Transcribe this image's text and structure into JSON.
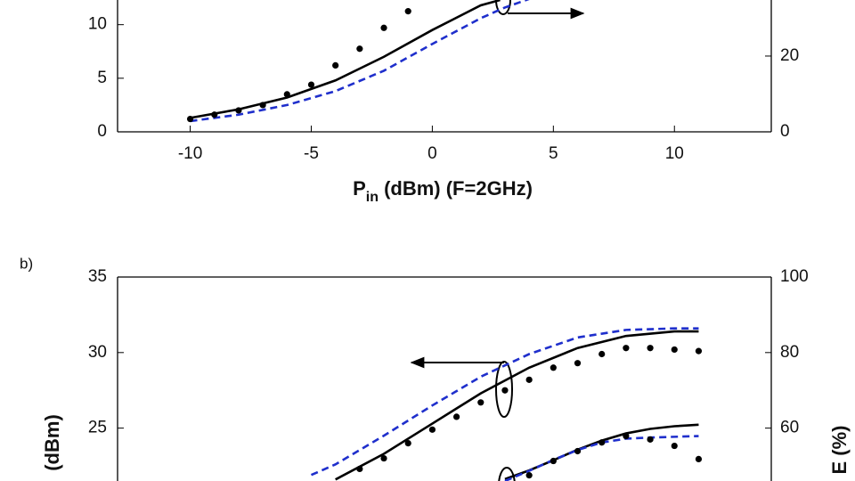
{
  "chart_data": [
    {
      "type": "line",
      "xlabel": [
        "P",
        "in",
        " (dBm) (F=2GHz)"
      ],
      "xlim": [
        -13,
        14
      ],
      "xticks": [
        -10,
        -5,
        0,
        5,
        10
      ],
      "ylim": [
        0,
        12.3
      ],
      "yticks": [
        0,
        5,
        10
      ],
      "y2lim": [
        0,
        34.8
      ],
      "y2ticks": [
        0,
        20
      ],
      "series": [
        {
          "color": "#000000",
          "style": "solid",
          "x": [
            -10,
            -8,
            -6,
            -4,
            -2,
            0,
            2,
            2.8
          ],
          "values": [
            1.3,
            2.1,
            3.2,
            4.8,
            7.0,
            9.5,
            11.8,
            12.3
          ]
        },
        {
          "color": "#1f2fcc",
          "style": "dashed",
          "x": [
            -10,
            -8,
            -6,
            -4,
            -2,
            0,
            2,
            3,
            4
          ],
          "values": [
            1.0,
            1.6,
            2.5,
            3.8,
            5.7,
            8.2,
            10.6,
            11.6,
            12.4
          ]
        },
        {
          "color": "#000000",
          "style": "markers",
          "x": [
            -10,
            -9,
            -8,
            -7,
            -6,
            -5,
            -4,
            -3,
            -2,
            -1
          ],
          "values": [
            1.2,
            1.6,
            2.0,
            2.5,
            3.5,
            4.4,
            6.2,
            7.75,
            9.7,
            11.25
          ]
        }
      ]
    },
    {
      "type": "line",
      "panel_label": "b)",
      "ylabel": "(dBm)",
      "y2label": "E (%)",
      "xlim": [
        -13,
        14
      ],
      "ylim": [
        21.5,
        35
      ],
      "yticks": [
        25,
        30,
        35
      ],
      "y2lim": [
        46,
        100
      ],
      "y2ticks": [
        60,
        80,
        100
      ],
      "series": [
        {
          "color": "#000000",
          "style": "solid",
          "x": [
            -4,
            -2,
            0,
            2,
            4,
            6,
            8,
            10,
            11
          ],
          "values": [
            21.6,
            23.3,
            25.3,
            27.3,
            29.0,
            30.3,
            31.1,
            31.4,
            31.4
          ]
        },
        {
          "color": "#1f2fcc",
          "style": "dashed",
          "x": [
            -5,
            -4,
            -2,
            0,
            2,
            4,
            6,
            8,
            10,
            11
          ],
          "values": [
            21.9,
            22.6,
            24.5,
            26.5,
            28.4,
            29.9,
            31.0,
            31.5,
            31.6,
            31.6
          ]
        },
        {
          "color": "#000000",
          "style": "markers",
          "x": [
            -3,
            -2,
            -1,
            0,
            1,
            2,
            3,
            4,
            5,
            6,
            7,
            8,
            9,
            10,
            11
          ],
          "values": [
            22.3,
            23.0,
            24.0,
            24.9,
            25.75,
            26.7,
            27.5,
            28.2,
            29.0,
            29.3,
            29.9,
            30.3,
            30.3,
            30.2,
            30.1
          ]
        },
        {
          "color": "#000000",
          "style": "solid",
          "axis": "y2",
          "x": [
            3,
            4,
            5,
            6,
            7,
            8,
            9,
            10,
            11
          ],
          "values": [
            46.5,
            48.8,
            51.5,
            54.3,
            56.7,
            58.6,
            59.8,
            60.5,
            60.9
          ]
        },
        {
          "color": "#1f2fcc",
          "style": "dashed",
          "axis": "y2",
          "x": [
            3,
            4,
            5,
            6,
            7,
            8,
            9,
            10,
            11
          ],
          "values": [
            46.0,
            48.7,
            51.6,
            54.2,
            56.2,
            57.2,
            57.5,
            57.7,
            57.9
          ]
        },
        {
          "color": "#000000",
          "style": "markers",
          "axis": "y2",
          "x": [
            4,
            5,
            6,
            7,
            8,
            9,
            10,
            11
          ],
          "values": [
            47.5,
            51.3,
            53.9,
            56.2,
            57.9,
            57.0,
            55.3,
            51.8
          ]
        }
      ]
    }
  ]
}
